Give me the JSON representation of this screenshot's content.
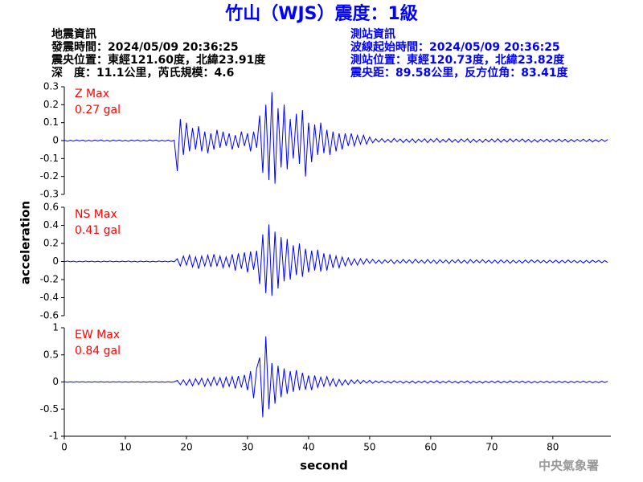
{
  "header": {
    "title": "竹山（WJS）震度：1級",
    "left": [
      "地震資訊",
      "發震時間：2024/05/09 20:36:25",
      "震央位置：東經121.60度，北緯23.91度",
      "深　度：11.1公里，芮氏規模：4.6"
    ],
    "right": [
      "測站資訊",
      "波線起始時間：2024/05/09 20:36:25",
      "測站位置：東經120.73度，北緯23.82度",
      "震央距：89.58公里，反方位角：83.41度"
    ]
  },
  "chart_data": {
    "type": "line",
    "xlabel": "second",
    "ylabel": "acceleration",
    "xlim": [
      0,
      89.5
    ],
    "xticks": [
      0,
      10,
      20,
      30,
      40,
      50,
      60,
      70,
      80
    ],
    "x": [
      0,
      0.5,
      1,
      1.5,
      2,
      2.5,
      3,
      3.5,
      4,
      4.5,
      5,
      5.5,
      6,
      6.5,
      7,
      7.5,
      8,
      8.5,
      9,
      9.5,
      10,
      10.5,
      11,
      11.5,
      12,
      12.5,
      13,
      13.5,
      14,
      14.5,
      15,
      15.5,
      16,
      16.5,
      17,
      17.5,
      18,
      18.5,
      19,
      19.5,
      20,
      20.5,
      21,
      21.5,
      22,
      22.5,
      23,
      23.5,
      24,
      24.5,
      25,
      25.5,
      26,
      26.5,
      27,
      27.5,
      28,
      28.5,
      29,
      29.5,
      30,
      30.5,
      31,
      31.5,
      32,
      32.5,
      33,
      33.5,
      34,
      34.5,
      35,
      35.5,
      36,
      36.5,
      37,
      37.5,
      38,
      38.5,
      39,
      39.5,
      40,
      40.5,
      41,
      41.5,
      42,
      42.5,
      43,
      43.5,
      44,
      44.5,
      45,
      45.5,
      46,
      46.5,
      47,
      47.5,
      48,
      48.5,
      49,
      49.5,
      50,
      50.5,
      51,
      51.5,
      52,
      52.5,
      53,
      53.5,
      54,
      54.5,
      55,
      55.5,
      56,
      56.5,
      57,
      57.5,
      58,
      58.5,
      59,
      59.5,
      60,
      60.5,
      61,
      61.5,
      62,
      62.5,
      63,
      63.5,
      64,
      64.5,
      65,
      65.5,
      66,
      66.5,
      67,
      67.5,
      68,
      68.5,
      69,
      69.5,
      70,
      70.5,
      71,
      71.5,
      72,
      72.5,
      73,
      73.5,
      74,
      74.5,
      75,
      75.5,
      76,
      76.5,
      77,
      77.5,
      78,
      78.5,
      79,
      79.5,
      80,
      80.5,
      81,
      81.5,
      82,
      82.5,
      83,
      83.5,
      84,
      84.5,
      85,
      85.5,
      86,
      86.5,
      87,
      87.5,
      88,
      88.5,
      89
    ],
    "series": [
      {
        "name": "Z Max",
        "annotation": "0.27 gal",
        "color": "#0000ff",
        "label_color": "#ff0000",
        "ylim": [
          -0.3,
          0.3
        ],
        "yticks": [
          0.3,
          0.2,
          0.1,
          0,
          -0.1,
          -0.2,
          -0.3
        ],
        "values": [
          0.003,
          -0.004,
          0.002,
          -0.003,
          0.004,
          -0.002,
          0.003,
          -0.004,
          0.002,
          -0.003,
          0.003,
          -0.002,
          0.004,
          -0.003,
          0.002,
          -0.004,
          0.003,
          -0.002,
          0.003,
          -0.003,
          0.002,
          -0.004,
          0.003,
          -0.002,
          0.004,
          -0.003,
          0.002,
          -0.003,
          0.004,
          -0.002,
          0.003,
          -0.004,
          0.002,
          -0.003,
          0.003,
          -0.004,
          0.002,
          -0.17,
          0.12,
          -0.08,
          0.1,
          -0.06,
          0.07,
          -0.05,
          0.08,
          -0.06,
          0.05,
          -0.07,
          0.04,
          -0.05,
          0.06,
          -0.04,
          0.05,
          -0.03,
          0.04,
          -0.05,
          0.03,
          -0.04,
          0.05,
          -0.03,
          0.04,
          -0.06,
          0.05,
          -0.04,
          0.14,
          -0.18,
          0.2,
          -0.22,
          0.27,
          -0.24,
          0.18,
          -0.15,
          0.2,
          -0.16,
          0.12,
          -0.1,
          0.15,
          -0.13,
          0.17,
          -0.2,
          0.1,
          -0.12,
          0.09,
          -0.08,
          0.1,
          -0.07,
          0.06,
          -0.08,
          0.05,
          -0.06,
          0.04,
          -0.05,
          0.04,
          -0.03,
          0.04,
          -0.03,
          0.03,
          -0.02,
          0.03,
          -0.02,
          0.02,
          -0.012,
          0.01,
          -0.008,
          0.011,
          -0.009,
          0.007,
          -0.01,
          0.012,
          -0.007,
          0.009,
          -0.011,
          0.008,
          -0.009,
          0.01,
          -0.012,
          0.008,
          -0.007,
          0.01,
          -0.011,
          0.009,
          -0.008,
          0.012,
          -0.01,
          0.007,
          -0.008,
          0.011,
          -0.009,
          0.007,
          -0.01,
          0.009,
          -0.007,
          0.01,
          -0.011,
          0.008,
          -0.009,
          0.007,
          -0.01,
          0.008,
          -0.007,
          0.009,
          -0.008,
          0.01,
          -0.009,
          0.007,
          -0.008,
          0.01,
          -0.007,
          0.008,
          -0.006,
          0.009,
          -0.008,
          0.007,
          -0.009,
          0.006,
          -0.008,
          0.007,
          -0.006,
          0.008,
          -0.007,
          0.006,
          -0.007,
          0.008,
          -0.006,
          0.007,
          -0.008,
          0.006,
          -0.006,
          0.007,
          -0.005,
          0.008,
          -0.006,
          0.007,
          -0.007,
          0.005,
          -0.006,
          0.007,
          -0.005,
          0.006
        ]
      },
      {
        "name": "NS Max",
        "annotation": "0.41 gal",
        "color": "#0000ff",
        "label_color": "#ff0000",
        "ylim": [
          -0.6,
          0.6
        ],
        "yticks": [
          0.6,
          0.4,
          0.2,
          0,
          -0.2,
          -0.4,
          -0.6
        ],
        "values": [
          -0.004,
          0.005,
          -0.003,
          0.004,
          -0.005,
          0.003,
          -0.004,
          0.005,
          -0.003,
          0.004,
          -0.004,
          0.003,
          -0.005,
          0.004,
          -0.003,
          0.005,
          -0.004,
          0.003,
          -0.004,
          0.004,
          -0.003,
          0.005,
          -0.004,
          0.003,
          -0.005,
          0.004,
          -0.003,
          0.004,
          -0.005,
          0.003,
          -0.004,
          0.005,
          -0.003,
          0.004,
          -0.004,
          0.005,
          -0.003,
          0.03,
          -0.05,
          0.06,
          -0.04,
          0.07,
          -0.06,
          0.05,
          -0.08,
          0.06,
          -0.05,
          0.07,
          -0.06,
          0.08,
          -0.05,
          0.06,
          -0.07,
          0.05,
          -0.06,
          0.08,
          -0.1,
          0.09,
          -0.08,
          0.1,
          -0.12,
          0.11,
          -0.09,
          0.12,
          -0.25,
          0.3,
          -0.35,
          0.41,
          -0.38,
          0.33,
          -0.3,
          0.27,
          -0.22,
          0.25,
          -0.2,
          0.18,
          -0.15,
          0.2,
          -0.17,
          0.14,
          -0.12,
          0.12,
          -0.1,
          0.13,
          -0.11,
          0.09,
          -0.1,
          0.08,
          -0.07,
          0.06,
          -0.07,
          0.05,
          -0.05,
          0.04,
          -0.04,
          0.03,
          -0.04,
          0.03,
          -0.03,
          0.03,
          -0.02,
          0.024,
          -0.02,
          0.016,
          -0.022,
          0.018,
          -0.014,
          0.02,
          -0.024,
          0.014,
          -0.018,
          0.022,
          -0.016,
          0.018,
          -0.02,
          0.024,
          -0.016,
          0.014,
          -0.02,
          0.022,
          -0.018,
          0.016,
          -0.024,
          0.02,
          -0.014,
          0.016,
          -0.022,
          0.018,
          -0.014,
          0.02,
          -0.018,
          0.014,
          -0.02,
          0.022,
          -0.016,
          0.018,
          -0.014,
          0.02,
          -0.016,
          0.014,
          -0.018,
          0.016,
          -0.02,
          0.018,
          -0.014,
          0.016,
          -0.02,
          0.014,
          -0.016,
          0.012,
          -0.018,
          0.016,
          -0.014,
          0.018,
          -0.012,
          0.016,
          -0.014,
          0.012,
          -0.016,
          0.014,
          -0.012,
          0.014,
          -0.016,
          0.012,
          -0.014,
          0.016,
          -0.012,
          0.012,
          -0.014,
          0.01,
          -0.016,
          0.012,
          -0.014,
          0.014,
          -0.01,
          0.012,
          -0.014,
          0.01,
          -0.012
        ]
      },
      {
        "name": "EW Max",
        "annotation": "0.84 gal",
        "color": "#0000ff",
        "label_color": "#ff0000",
        "ylim": [
          -1,
          1
        ],
        "yticks": [
          1,
          0.5,
          0,
          -0.5,
          -1
        ],
        "values": [
          0.005,
          -0.006,
          0.004,
          -0.005,
          0.006,
          -0.004,
          0.005,
          -0.006,
          0.004,
          -0.005,
          0.005,
          -0.004,
          0.006,
          -0.005,
          0.004,
          -0.006,
          0.005,
          -0.004,
          0.005,
          -0.005,
          0.004,
          -0.006,
          0.005,
          -0.004,
          0.006,
          -0.005,
          0.004,
          -0.005,
          0.006,
          -0.004,
          0.005,
          -0.006,
          0.004,
          -0.005,
          0.005,
          -0.006,
          0.004,
          0.03,
          -0.05,
          0.04,
          -0.06,
          0.05,
          -0.07,
          0.06,
          -0.05,
          0.07,
          -0.08,
          0.06,
          -0.07,
          0.09,
          -0.06,
          0.08,
          -0.1,
          0.09,
          -0.08,
          0.1,
          -0.12,
          0.11,
          -0.1,
          0.13,
          -0.15,
          0.2,
          -0.3,
          0.25,
          0.45,
          -0.65,
          0.84,
          -0.5,
          0.35,
          -0.4,
          0.3,
          -0.28,
          0.25,
          -0.22,
          0.2,
          -0.18,
          0.22,
          -0.15,
          0.17,
          -0.14,
          0.12,
          -0.15,
          0.12,
          -0.1,
          0.09,
          -0.08,
          0.1,
          -0.07,
          0.06,
          -0.08,
          0.05,
          -0.06,
          0.04,
          -0.05,
          0.04,
          -0.03,
          0.04,
          -0.03,
          0.03,
          -0.02,
          0.03,
          -0.024,
          0.02,
          -0.016,
          0.022,
          -0.018,
          0.014,
          -0.02,
          0.024,
          -0.014,
          0.018,
          -0.022,
          0.016,
          -0.018,
          0.02,
          -0.024,
          0.016,
          -0.014,
          0.02,
          -0.022,
          0.018,
          -0.016,
          0.024,
          -0.02,
          0.014,
          -0.016,
          0.022,
          -0.018,
          0.014,
          -0.02,
          0.018,
          -0.014,
          0.02,
          -0.022,
          0.016,
          -0.018,
          0.014,
          -0.02,
          0.016,
          -0.014,
          0.018,
          -0.016,
          0.02,
          -0.018,
          0.014,
          -0.016,
          0.02,
          -0.014,
          0.016,
          -0.012,
          0.018,
          -0.016,
          0.014,
          -0.018,
          0.012,
          -0.016,
          0.014,
          -0.012,
          0.016,
          -0.014,
          0.012,
          -0.014,
          0.016,
          -0.012,
          0.014,
          -0.016,
          0.012,
          -0.012,
          0.014,
          -0.01,
          0.016,
          -0.012,
          0.014,
          -0.014,
          0.01,
          -0.012,
          0.014,
          -0.01,
          0.012
        ]
      }
    ]
  },
  "footer": "中央氣象署"
}
